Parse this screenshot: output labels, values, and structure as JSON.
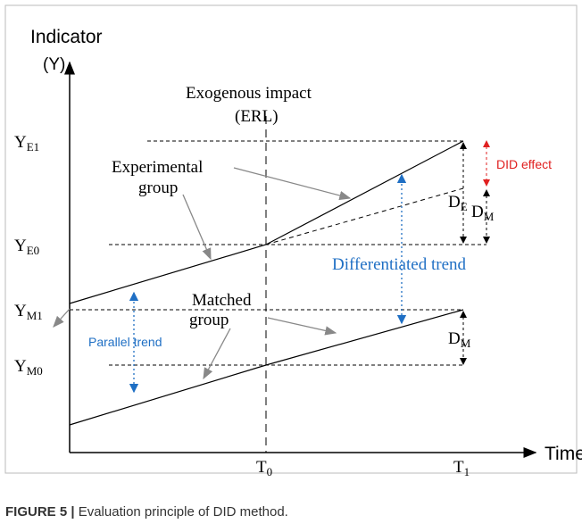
{
  "axis": {
    "y_title": "Indicator",
    "y_symbol": "(Y)",
    "x_title": "Time"
  },
  "impact": {
    "line1": "Exogenous impact",
    "line2": "(ERL)"
  },
  "y_labels": [
    {
      "main": "Y",
      "sub": "E1"
    },
    {
      "main": "Y",
      "sub": "E0"
    },
    {
      "main": "Y",
      "sub": "M1"
    },
    {
      "main": "Y",
      "sub": "M0"
    }
  ],
  "x_labels": [
    {
      "main": "T",
      "sub": "0"
    },
    {
      "main": "T",
      "sub": "1"
    }
  ],
  "groups": {
    "experimental": [
      "Experimental",
      "group"
    ],
    "matched": [
      "Matched",
      "group"
    ]
  },
  "effects": {
    "did": "DID effect",
    "d_e": {
      "main": "D",
      "sub": "E"
    },
    "d_m_upper": {
      "main": "D",
      "sub": "M"
    },
    "d_m_lower": {
      "main": "D",
      "sub": "M"
    }
  },
  "trends": {
    "differentiated": "Differentiated  trend",
    "parallel": "Parallel trend"
  },
  "caption": {
    "label": "FIGURE 5 |",
    "text": " Evaluation principle of DID method."
  }
}
